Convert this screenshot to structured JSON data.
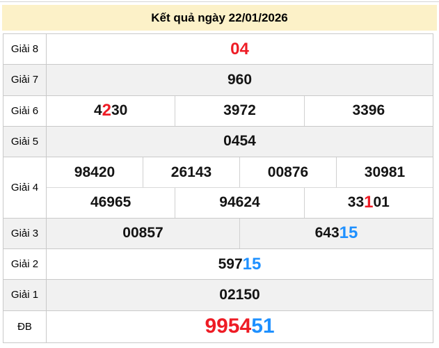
{
  "page": {
    "title": "Kết quả ngày 22/01/2026"
  },
  "colors": {
    "red": "#ee1c25",
    "blue": "#1e90ff",
    "black": "#141414",
    "header_bg": "#fcf1c8",
    "zebra_bg": "#f1f1f1",
    "border": "#c9c9c9"
  },
  "results_table": {
    "rows": [
      {
        "label": "Giải 8",
        "zebra": false,
        "size": "normal",
        "lines": [
          [
            [
              {
                "t": "04",
                "c": "red"
              }
            ]
          ]
        ]
      },
      {
        "label": "Giải 7",
        "zebra": true,
        "size": "normal",
        "lines": [
          [
            [
              {
                "t": "960",
                "c": "black"
              }
            ]
          ]
        ]
      },
      {
        "label": "Giải 6",
        "zebra": false,
        "size": "normal",
        "lines": [
          [
            [
              {
                "t": "4",
                "c": "black"
              },
              {
                "t": "2",
                "c": "red"
              },
              {
                "t": "30",
                "c": "black"
              }
            ],
            [
              {
                "t": "3972",
                "c": "black"
              }
            ],
            [
              {
                "t": "3396",
                "c": "black"
              }
            ]
          ]
        ]
      },
      {
        "label": "Giải 5",
        "zebra": true,
        "size": "normal",
        "lines": [
          [
            [
              {
                "t": "0454",
                "c": "black"
              }
            ]
          ]
        ]
      },
      {
        "label": "Giải 4",
        "zebra": false,
        "size": "normal",
        "lines": [
          [
            [
              {
                "t": "98420",
                "c": "black"
              }
            ],
            [
              {
                "t": "26143",
                "c": "black"
              }
            ],
            [
              {
                "t": "00876",
                "c": "black"
              }
            ],
            [
              {
                "t": "30981",
                "c": "black"
              }
            ]
          ],
          [
            [
              {
                "t": "46965",
                "c": "black"
              }
            ],
            [
              {
                "t": "94624",
                "c": "black"
              }
            ],
            [
              {
                "t": "33",
                "c": "black"
              },
              {
                "t": "1",
                "c": "red"
              },
              {
                "t": "01",
                "c": "black"
              }
            ]
          ]
        ]
      },
      {
        "label": "Giải 3",
        "zebra": true,
        "size": "normal",
        "lines": [
          [
            [
              {
                "t": "00857",
                "c": "black"
              }
            ],
            [
              {
                "t": "643",
                "c": "black"
              },
              {
                "t": "15",
                "c": "blue"
              }
            ]
          ]
        ]
      },
      {
        "label": "Giải 2",
        "zebra": false,
        "size": "normal",
        "lines": [
          [
            [
              {
                "t": "597",
                "c": "black"
              },
              {
                "t": "15",
                "c": "blue"
              }
            ]
          ]
        ]
      },
      {
        "label": "Giải 1",
        "zebra": true,
        "size": "normal",
        "lines": [
          [
            [
              {
                "t": "02150",
                "c": "black"
              }
            ]
          ]
        ]
      },
      {
        "label": "ĐB",
        "zebra": false,
        "size": "big",
        "lines": [
          [
            [
              {
                "t": "9954",
                "c": "red"
              },
              {
                "t": "51",
                "c": "blue"
              }
            ]
          ]
        ]
      }
    ]
  }
}
